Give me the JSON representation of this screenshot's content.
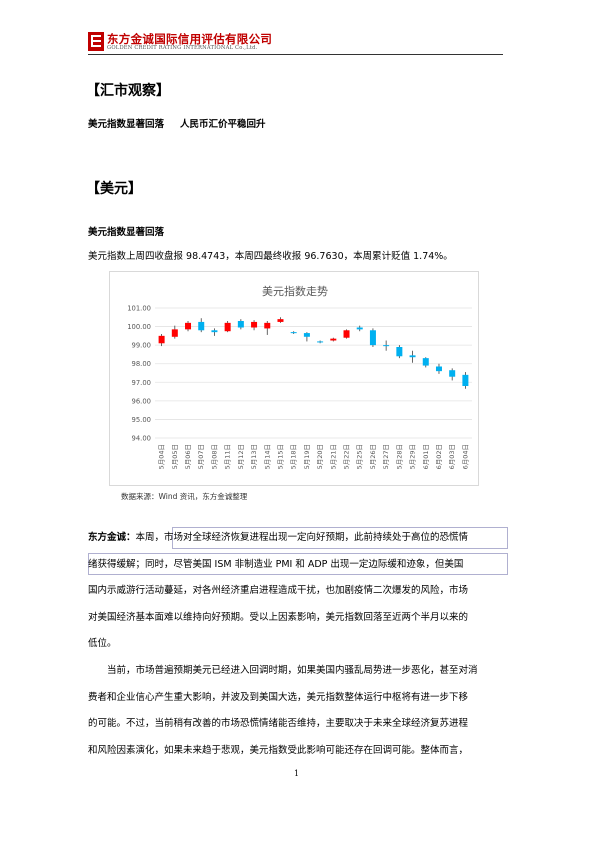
{
  "header": {
    "company_cn": "东方金诚国际信用评估有限公司",
    "company_en": "GOLDEN CREDIT RATING INTERNATIONAL Co.,Ltd."
  },
  "sections": {
    "market_title": "【汇市观察】",
    "headline_left": "美元指数显著回落",
    "headline_right": "人民币汇价平稳回升",
    "usd_title": "【美元】",
    "usd_subtitle": "美元指数显著回落",
    "usd_summary": "美元指数上周四收盘报 98.4743，本周四最终收报 96.7630，本周累计贬值 1.74%。"
  },
  "chart_source": "数据来源：Wind 资讯，东方金诚整理",
  "chart_data": {
    "type": "candlestick",
    "title": "美元指数走势",
    "ylim": [
      94.0,
      101.0
    ],
    "yticks": [
      "94.00",
      "95.00",
      "96.00",
      "97.00",
      "98.00",
      "99.00",
      "100.00",
      "101.00"
    ],
    "up_color": "#ff0000",
    "down_color": "#00b0f0",
    "categories": [
      "5月04日",
      "5月05日",
      "5月06日",
      "5月07日",
      "5月08日",
      "5月11日",
      "5月12日",
      "5月13日",
      "5月14日",
      "5月15日",
      "5月18日",
      "5月19日",
      "5月20日",
      "5月21日",
      "5月22日",
      "5月25日",
      "5月26日",
      "5月27日",
      "5月28日",
      "5月29日",
      "6月01日",
      "6月02日",
      "6月03日",
      "6月04日"
    ],
    "candles": [
      {
        "open": 99.1,
        "high": 99.6,
        "low": 98.95,
        "close": 99.5
      },
      {
        "open": 99.45,
        "high": 100.05,
        "low": 99.35,
        "close": 99.85
      },
      {
        "open": 99.85,
        "high": 100.3,
        "low": 99.75,
        "close": 100.2
      },
      {
        "open": 100.25,
        "high": 100.45,
        "low": 99.7,
        "close": 99.8
      },
      {
        "open": 99.8,
        "high": 99.9,
        "low": 99.5,
        "close": 99.7
      },
      {
        "open": 99.75,
        "high": 100.3,
        "low": 99.7,
        "close": 100.2
      },
      {
        "open": 100.3,
        "high": 100.4,
        "low": 99.85,
        "close": 99.95
      },
      {
        "open": 99.95,
        "high": 100.35,
        "low": 99.8,
        "close": 100.25
      },
      {
        "open": 99.9,
        "high": 100.3,
        "low": 99.55,
        "close": 100.2
      },
      {
        "open": 100.25,
        "high": 100.5,
        "low": 100.2,
        "close": 100.4
      },
      {
        "open": 99.7,
        "high": 99.75,
        "low": 99.6,
        "close": 99.65
      },
      {
        "open": 99.65,
        "high": 99.7,
        "low": 99.2,
        "close": 99.45
      },
      {
        "open": 99.2,
        "high": 99.25,
        "low": 99.1,
        "close": 99.15
      },
      {
        "open": 99.25,
        "high": 99.4,
        "low": 99.2,
        "close": 99.35
      },
      {
        "open": 99.4,
        "high": 99.85,
        "low": 99.35,
        "close": 99.8
      },
      {
        "open": 99.95,
        "high": 100.05,
        "low": 99.75,
        "close": 99.85
      },
      {
        "open": 99.8,
        "high": 99.9,
        "low": 98.9,
        "close": 99.0
      },
      {
        "open": 99.0,
        "high": 99.25,
        "low": 98.7,
        "close": 98.95
      },
      {
        "open": 98.9,
        "high": 99.0,
        "low": 98.3,
        "close": 98.4
      },
      {
        "open": 98.45,
        "high": 98.7,
        "low": 98.05,
        "close": 98.35
      },
      {
        "open": 98.3,
        "high": 98.35,
        "low": 97.8,
        "close": 97.9
      },
      {
        "open": 97.85,
        "high": 98.0,
        "low": 97.45,
        "close": 97.6
      },
      {
        "open": 97.65,
        "high": 97.75,
        "low": 97.1,
        "close": 97.3
      },
      {
        "open": 97.4,
        "high": 97.55,
        "low": 96.65,
        "close": 96.8
      }
    ]
  },
  "commentary": {
    "label": "东方金诚：",
    "lines": [
      "本周，市场对全球经济恢复进程出现一定向好预期，此前持续处于高位的恐慌情",
      "绪获得缓解；同时，尽管美国 ISM 非制造业 PMI 和 ADP 出现一定边际缓和迹象，但美国",
      "国内示威游行活动蔓延，对各州经济重启进程造成干扰，也加剧疫情二次爆发的风险，市场",
      "对美国经济基本面难以维持向好预期。受以上因素影响，美元指数回落至近两个半月以来的",
      "低位。"
    ]
  },
  "paragraph2": {
    "lines": [
      "当前，市场普遍预期美元已经进入回调时期，如果美国内骚乱局势进一步恶化，甚至对消",
      "费者和企业信心产生重大影响，并波及到美国大选，美元指数整体运行中枢将有进一步下移",
      "的可能。不过，当前稍有改善的市场恐慌情绪能否维持，主要取决于未来全球经济复苏进程",
      "和风险因素演化，如果未来趋于悲观，美元指数受此影响可能还存在回调可能。整体而言，"
    ]
  },
  "page_number": "1"
}
